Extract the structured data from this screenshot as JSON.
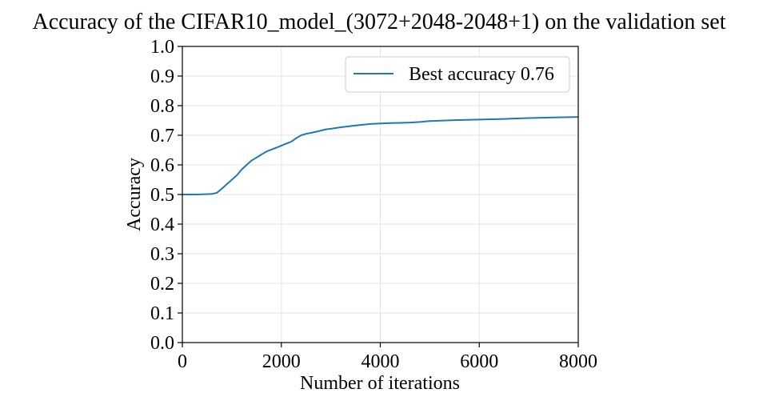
{
  "chart_data": {
    "type": "line",
    "title": "Accuracy of the CIFAR10_model_(3072+2048-2048+1) on the validation set",
    "xlabel": "Number of iterations",
    "ylabel": "Accuracy",
    "xlim": [
      0,
      8000
    ],
    "ylim": [
      0.0,
      1.0
    ],
    "xticks": [
      0,
      2000,
      4000,
      6000,
      8000
    ],
    "yticks": [
      0.0,
      0.1,
      0.2,
      0.3,
      0.4,
      0.5,
      0.6,
      0.7,
      0.8,
      0.9,
      1.0
    ],
    "grid": true,
    "legend_position": "top-right",
    "series_color": "#1f77b4",
    "series": [
      {
        "name": "Best accuracy 0.76",
        "x": [
          0,
          300,
          600,
          700,
          800,
          900,
          1000,
          1100,
          1200,
          1300,
          1400,
          1500,
          1600,
          1700,
          1800,
          1900,
          2000,
          2100,
          2200,
          2300,
          2400,
          2500,
          2600,
          2700,
          2800,
          2900,
          3000,
          3200,
          3400,
          3600,
          3800,
          4000,
          4200,
          4400,
          4600,
          4800,
          5000,
          5500,
          6000,
          6500,
          7000,
          7500,
          8000
        ],
        "values": [
          0.5,
          0.5,
          0.502,
          0.506,
          0.52,
          0.535,
          0.55,
          0.565,
          0.585,
          0.6,
          0.615,
          0.625,
          0.635,
          0.645,
          0.652,
          0.658,
          0.665,
          0.672,
          0.678,
          0.69,
          0.7,
          0.705,
          0.708,
          0.712,
          0.716,
          0.72,
          0.722,
          0.727,
          0.731,
          0.735,
          0.738,
          0.74,
          0.741,
          0.742,
          0.743,
          0.745,
          0.748,
          0.751,
          0.753,
          0.755,
          0.758,
          0.76,
          0.762
        ]
      }
    ]
  }
}
